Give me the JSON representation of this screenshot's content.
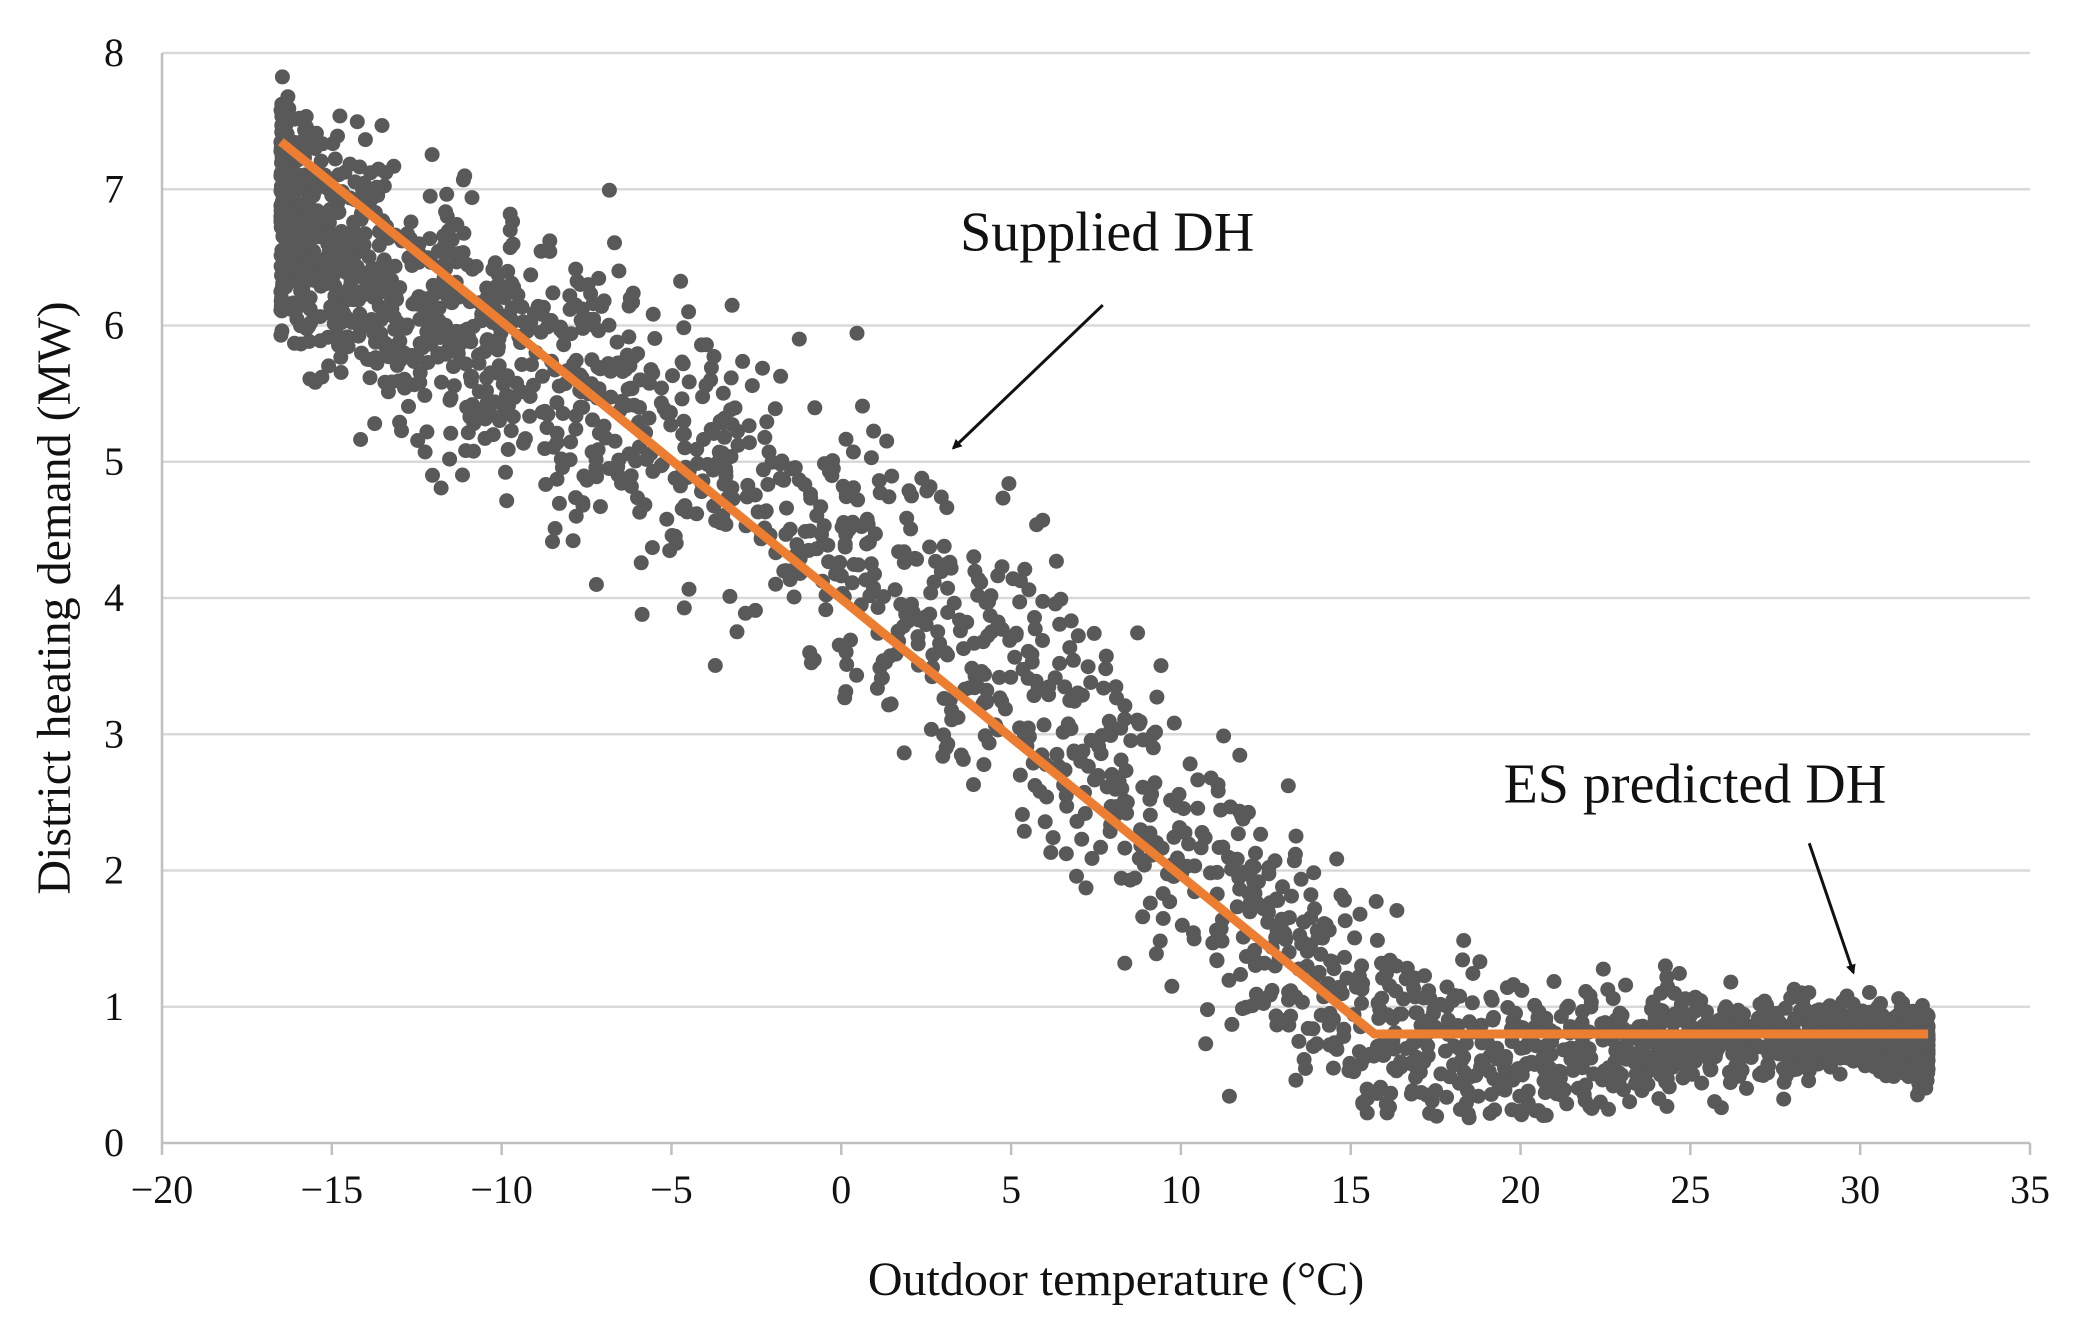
{
  "chart_data": {
    "type": "scatter",
    "xlabel": "Outdoor temperature (°C)",
    "ylabel": "District heating demand (MW)",
    "xlim": [
      -20,
      35
    ],
    "ylim": [
      0,
      8
    ],
    "x_ticks": [
      -20,
      -15,
      -10,
      -5,
      0,
      5,
      10,
      15,
      20,
      25,
      30,
      35
    ],
    "x_tick_labels": [
      "−20",
      "−15",
      "−10",
      "−5",
      "0",
      "5",
      "10",
      "15",
      "20",
      "25",
      "30",
      "35"
    ],
    "y_ticks": [
      0,
      1,
      2,
      3,
      4,
      5,
      6,
      7,
      8
    ],
    "y_tick_labels": [
      "0",
      "1",
      "2",
      "3",
      "4",
      "5",
      "6",
      "7",
      "8"
    ],
    "grid": true,
    "colors": {
      "points": "#595959",
      "model_line": "#ED7D31",
      "grid": "#D9D9D9",
      "axis": "#BFBFBF",
      "annotation": "#111111"
    },
    "series": [
      {
        "name": "Supplied DH",
        "type": "scatter",
        "point_count": 8760,
        "trend": [
          {
            "x": -16.5,
            "y": 6.9
          },
          {
            "x": -15,
            "y": 6.5
          },
          {
            "x": -10,
            "y": 5.9
          },
          {
            "x": -5,
            "y": 5.2
          },
          {
            "x": 0,
            "y": 4.4
          },
          {
            "x": 5,
            "y": 3.5
          },
          {
            "x": 10,
            "y": 2.2
          },
          {
            "x": 15,
            "y": 0.9
          },
          {
            "x": 20,
            "y": 0.65
          },
          {
            "x": 25,
            "y": 0.75
          },
          {
            "x": 30,
            "y": 0.8
          },
          {
            "x": 32,
            "y": 0.7
          }
        ],
        "scatter_band": [
          {
            "x": -15,
            "y": 0.45
          },
          {
            "x": -10,
            "y": 0.5
          },
          {
            "x": -5,
            "y": 0.55
          },
          {
            "x": 0,
            "y": 0.55
          },
          {
            "x": 5,
            "y": 0.55
          },
          {
            "x": 10,
            "y": 0.55
          },
          {
            "x": 15,
            "y": 0.4
          },
          {
            "x": 20,
            "y": 0.28
          },
          {
            "x": 25,
            "y": 0.2
          },
          {
            "x": 30,
            "y": 0.12
          }
        ]
      },
      {
        "name": "ES predicted DH",
        "type": "line",
        "points": [
          {
            "x": -16.5,
            "y": 7.35
          },
          {
            "x": 15.7,
            "y": 0.8
          },
          {
            "x": 32,
            "y": 0.8
          }
        ]
      }
    ],
    "annotations": [
      {
        "text": "Supplied DH",
        "text_at": {
          "x": 3.5,
          "y": 6.55
        },
        "arrow_from": {
          "x": 7.7,
          "y": 6.15
        },
        "arrow_to": {
          "x": 3.3,
          "y": 5.1
        }
      },
      {
        "text": "ES predicted DH",
        "text_at": {
          "x": 19.5,
          "y": 2.5
        },
        "arrow_from": {
          "x": 28.5,
          "y": 2.2
        },
        "arrow_to": {
          "x": 29.8,
          "y": 1.25
        }
      }
    ]
  }
}
